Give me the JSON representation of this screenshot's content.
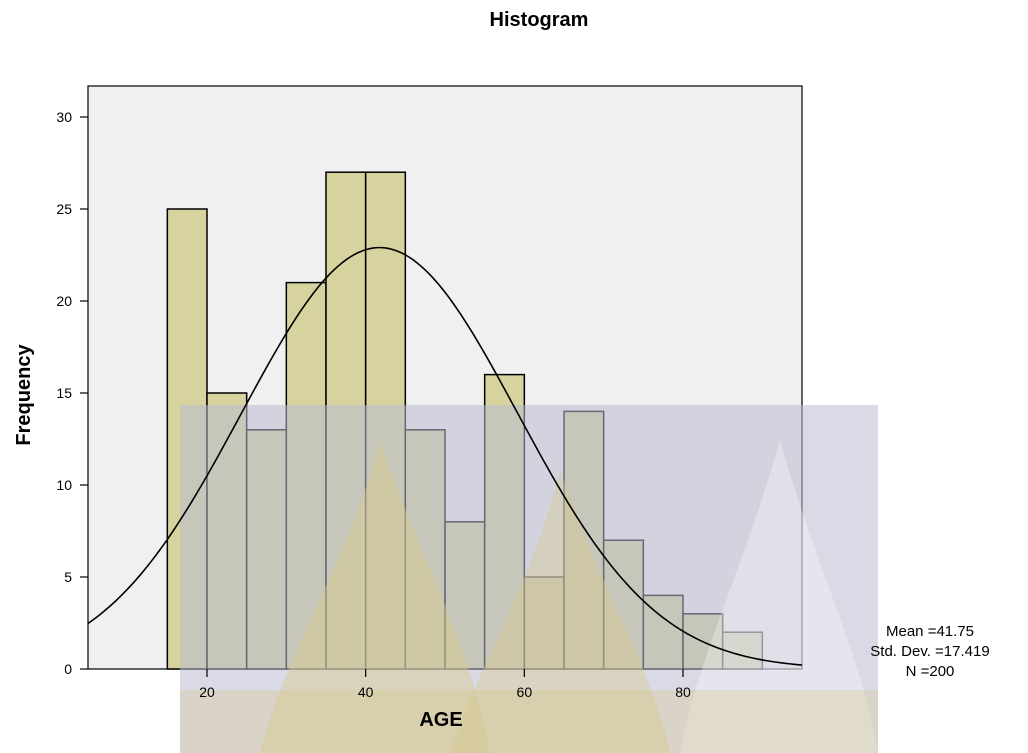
{
  "chart_data": {
    "type": "histogram",
    "title": "Histogram",
    "xlabel": "AGE",
    "ylabel": "Frequency",
    "xlim": [
      5,
      95
    ],
    "ylim": [
      0,
      30
    ],
    "x_ticks": [
      20,
      40,
      60,
      80
    ],
    "y_ticks": [
      0,
      5,
      10,
      15,
      20,
      25,
      30
    ],
    "bin_width": 5,
    "bins": [
      {
        "start": 15,
        "end": 20,
        "count": 25
      },
      {
        "start": 20,
        "end": 25,
        "count": 15
      },
      {
        "start": 25,
        "end": 30,
        "count": 13
      },
      {
        "start": 30,
        "end": 35,
        "count": 21
      },
      {
        "start": 35,
        "end": 40,
        "count": 27
      },
      {
        "start": 40,
        "end": 45,
        "count": 27
      },
      {
        "start": 45,
        "end": 50,
        "count": 13
      },
      {
        "start": 50,
        "end": 55,
        "count": 8
      },
      {
        "start": 55,
        "end": 60,
        "count": 16
      },
      {
        "start": 60,
        "end": 65,
        "count": 5
      },
      {
        "start": 65,
        "end": 70,
        "count": 14
      },
      {
        "start": 70,
        "end": 75,
        "count": 7
      },
      {
        "start": 75,
        "end": 80,
        "count": 4
      },
      {
        "start": 80,
        "end": 85,
        "count": 3
      },
      {
        "start": 85,
        "end": 90,
        "count": 2
      }
    ],
    "normal_curve": {
      "mean": 41.75,
      "std_dev": 17.419,
      "n": 200
    },
    "stats_labels": [
      "Mean =41.75",
      "Std. Dev. =17.419",
      "N =200"
    ],
    "grid": false,
    "colors": {
      "bar_fill": "#d6d39e",
      "bar_stroke": "#000000",
      "plot_background": "#f0f0f0",
      "watermark": "#bbbbd2",
      "watermark_leaf": "#d8c98c"
    }
  }
}
